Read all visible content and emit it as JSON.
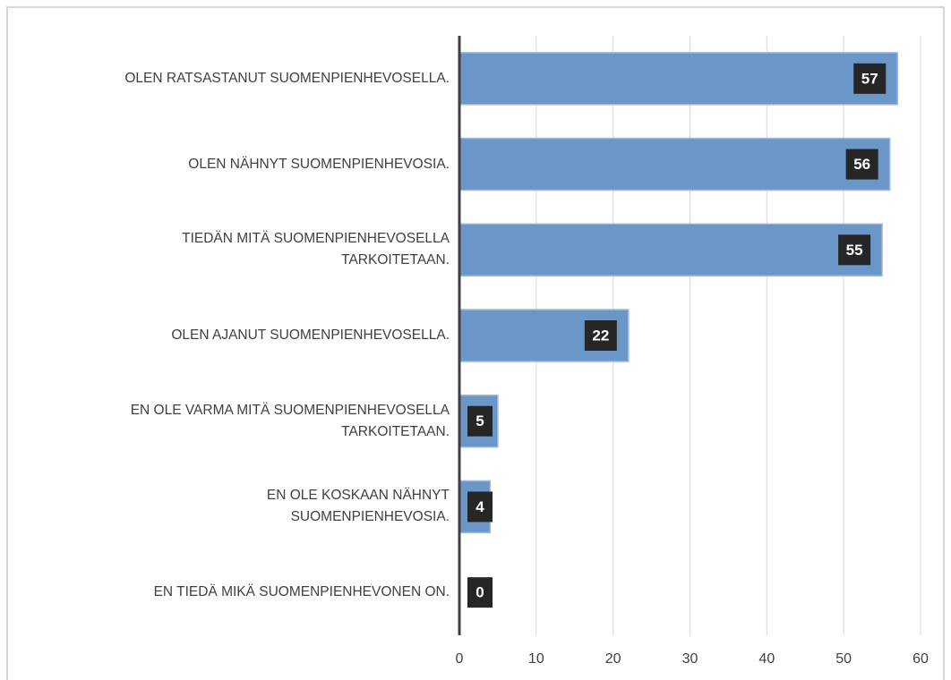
{
  "chart_data": {
    "type": "bar",
    "orientation": "horizontal",
    "categories": [
      "OLEN RATSASTANUT SUOMENPIENHEVOSELLA.",
      "OLEN NÄHNYT SUOMENPIENHEVOSIA.",
      "TIEDÄN MITÄ SUOMENPIENHEVOSELLA\nTARKOITETAAN.",
      "OLEN AJANUT SUOMENPIENHEVOSELLA.",
      "EN OLE VARMA MITÄ SUOMENPIENHEVOSELLA\nTARKOITETAAN.",
      "EN OLE KOSKAAN NÄHNYT\nSUOMENPIENHEVOSIA.",
      "EN TIEDÄ MIKÄ SUOMENPIENHEVONEN ON."
    ],
    "values": [
      57,
      56,
      55,
      22,
      5,
      4,
      0
    ],
    "color": "#6a96c8",
    "xlim": [
      0,
      60
    ],
    "xticks": [
      0,
      10,
      20,
      30,
      40,
      50,
      60
    ],
    "grid": true
  }
}
